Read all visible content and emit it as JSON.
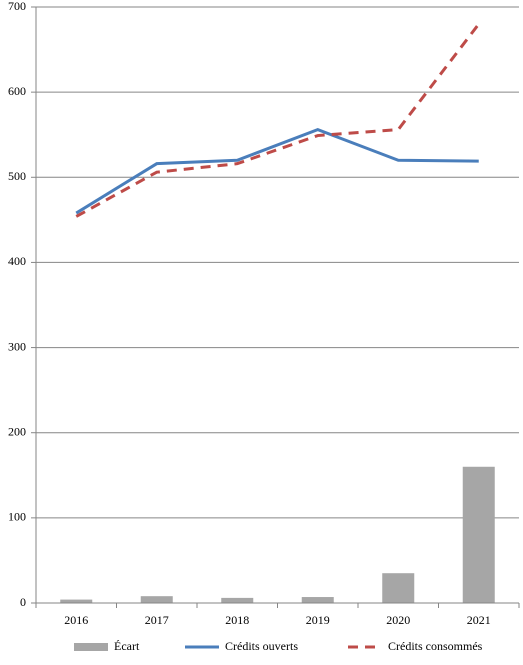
{
  "chart_data": {
    "type": "combo",
    "categories": [
      "2016",
      "2017",
      "2018",
      "2019",
      "2020",
      "2021"
    ],
    "series": [
      {
        "name": "Écart",
        "type": "bar",
        "color": "#a6a6a6",
        "values": [
          4,
          8,
          6,
          7,
          35,
          160
        ]
      },
      {
        "name": "Crédits ouverts",
        "type": "line",
        "line_style": "solid",
        "color": "#4a7ebb",
        "values": [
          458,
          516,
          520,
          556,
          520,
          519
        ]
      },
      {
        "name": "Crédits consommés",
        "type": "line",
        "line_style": "dashed",
        "color": "#be4b48",
        "values": [
          454,
          506,
          516,
          549,
          556,
          680
        ]
      }
    ],
    "ylim": [
      0,
      700
    ],
    "yticks": [
      0,
      100,
      200,
      300,
      400,
      500,
      600,
      700
    ],
    "grid": true,
    "legend": "bottom"
  }
}
